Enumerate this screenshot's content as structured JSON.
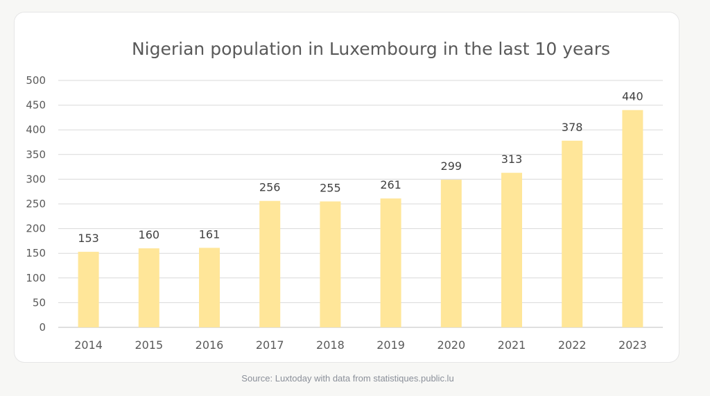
{
  "chart_data": {
    "type": "bar",
    "title": "Nigerian population in Luxembourg  in the last 10 years",
    "categories": [
      "2014",
      "2015",
      "2016",
      "2017",
      "2018",
      "2019",
      "2020",
      "2021",
      "2022",
      "2023"
    ],
    "values": [
      153,
      160,
      161,
      256,
      255,
      261,
      299,
      313,
      378,
      440
    ],
    "ylim": [
      0,
      500
    ],
    "yticks": [
      0,
      50,
      100,
      150,
      200,
      250,
      300,
      350,
      400,
      450,
      500
    ],
    "grid": true,
    "bar_color": "#ffe699",
    "xlabel": "",
    "ylabel": ""
  },
  "caption": "Source: Luxtoday with data from statistiques.public.lu"
}
